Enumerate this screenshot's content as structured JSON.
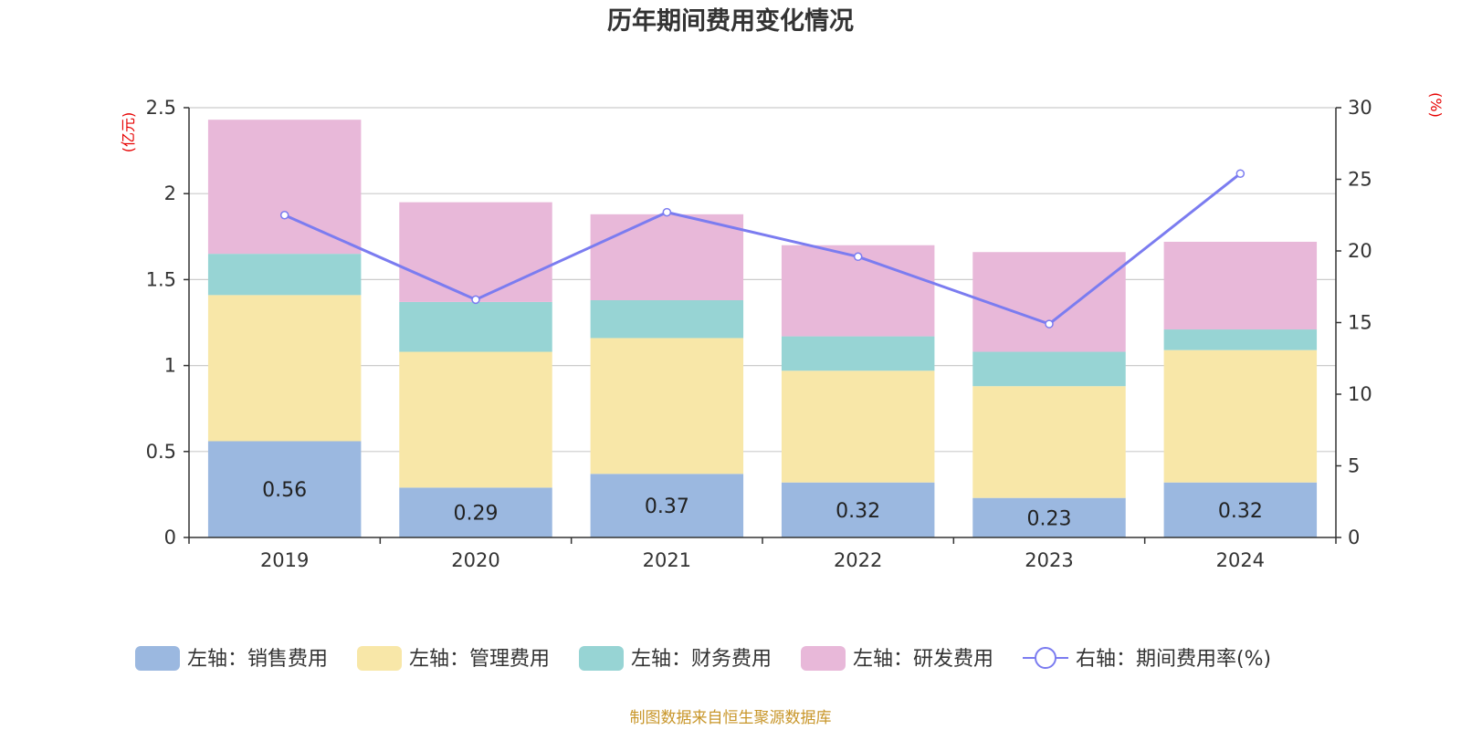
{
  "chart_data": {
    "type": "bar",
    "title": "历年期间费用变化情况",
    "categories": [
      "2019",
      "2020",
      "2021",
      "2022",
      "2023",
      "2024"
    ],
    "left_axis": {
      "unit": "(亿元)",
      "ylim": [
        0,
        2.5
      ],
      "ticks": [
        "0",
        "0.5",
        "1",
        "1.5",
        "2",
        "2.5"
      ]
    },
    "right_axis": {
      "unit": "(%)",
      "ylim": [
        0,
        30
      ],
      "ticks": [
        "0",
        "5",
        "10",
        "15",
        "20",
        "25",
        "30"
      ]
    },
    "series": [
      {
        "name": "左轴：销售费用",
        "type": "bar",
        "axis": "left",
        "color": "#9bb8e0",
        "values": [
          0.56,
          0.29,
          0.37,
          0.32,
          0.23,
          0.32
        ],
        "labels": [
          "0.56",
          "0.29",
          "0.37",
          "0.32",
          "0.23",
          "0.32"
        ]
      },
      {
        "name": "左轴：管理费用",
        "type": "bar",
        "axis": "left",
        "color": "#f8e7a8",
        "values": [
          0.85,
          0.79,
          0.79,
          0.65,
          0.65,
          0.77
        ]
      },
      {
        "name": "左轴：财务费用",
        "type": "bar",
        "axis": "left",
        "color": "#97d4d4",
        "values": [
          0.24,
          0.29,
          0.22,
          0.2,
          0.2,
          0.12
        ]
      },
      {
        "name": "左轴：研发费用",
        "type": "bar",
        "axis": "left",
        "color": "#e8b8d9",
        "values": [
          0.78,
          0.58,
          0.5,
          0.53,
          0.58,
          0.51
        ]
      },
      {
        "name": "右轴：期间费用率(%)",
        "type": "line",
        "axis": "right",
        "color": "#7b7cf0",
        "values": [
          22.5,
          16.6,
          22.7,
          19.6,
          14.9,
          25.4
        ]
      }
    ],
    "grid": true,
    "legend_position": "bottom"
  },
  "footer": {
    "source": "制图数据来自恒生聚源数据库"
  }
}
